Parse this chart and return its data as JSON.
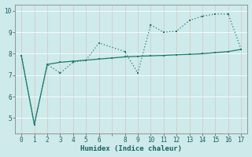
{
  "xlabel": "Humidex (Indice chaleur)",
  "bg_color": "#ceeaea",
  "line_color": "#1a7a6a",
  "grid_color": "#b8d8d8",
  "xlim": [
    -0.5,
    17.5
  ],
  "ylim": [
    4.3,
    10.3
  ],
  "xticks": [
    0,
    1,
    2,
    3,
    4,
    5,
    6,
    7,
    8,
    9,
    10,
    11,
    12,
    13,
    14,
    15,
    16,
    17
  ],
  "xticklabels": [
    "0",
    "1",
    "2",
    "3",
    "4",
    "5",
    "6",
    "",
    "8",
    "9",
    "10",
    "11",
    "12",
    "13",
    "14",
    "15",
    "16",
    "17"
  ],
  "yticks": [
    5,
    6,
    7,
    8,
    9,
    10
  ],
  "series_solid_x": [
    0,
    1,
    2,
    3,
    4,
    5,
    6,
    7,
    8,
    9,
    10,
    11,
    12,
    13,
    14,
    15,
    16,
    17
  ],
  "series_solid_y": [
    7.9,
    4.7,
    7.5,
    7.6,
    7.65,
    7.7,
    7.75,
    7.8,
    7.85,
    7.88,
    7.9,
    7.92,
    7.95,
    7.97,
    8.0,
    8.05,
    8.1,
    8.2
  ],
  "series_dot_x": [
    0,
    1,
    2,
    3,
    4,
    5,
    6,
    8,
    9,
    10,
    11,
    12,
    13,
    14,
    15,
    16,
    17
  ],
  "series_dot_y": [
    7.9,
    4.7,
    7.5,
    7.1,
    7.6,
    7.7,
    8.5,
    8.1,
    7.1,
    9.35,
    9.0,
    9.05,
    9.55,
    9.75,
    9.85,
    9.85,
    8.2
  ]
}
